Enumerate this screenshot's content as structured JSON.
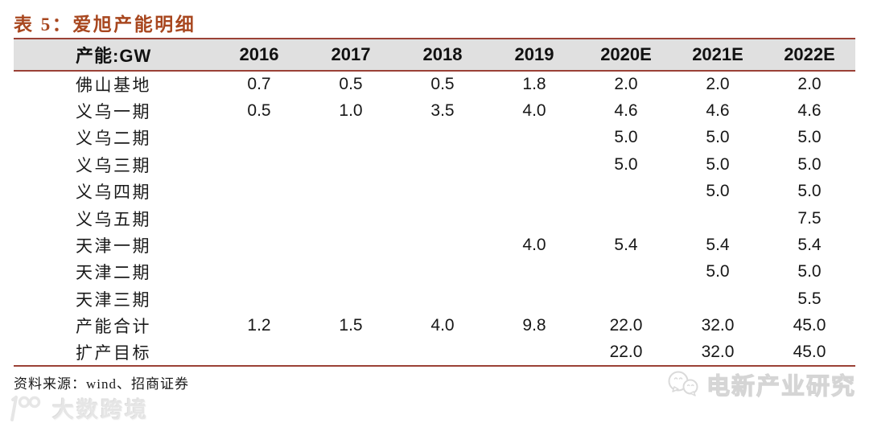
{
  "page": {
    "title": "表 5：爱旭产能明细"
  },
  "table": {
    "columns": [
      "产能:GW",
      "2016",
      "2017",
      "2018",
      "2019",
      "2020E",
      "2021E",
      "2022E"
    ],
    "rows": [
      {
        "label": "佛山基地",
        "values": [
          "0.7",
          "0.5",
          "0.5",
          "1.8",
          "2.0",
          "2.0",
          "2.0"
        ]
      },
      {
        "label": "义乌一期",
        "values": [
          "0.5",
          "1.0",
          "3.5",
          "4.0",
          "4.6",
          "4.6",
          "4.6"
        ]
      },
      {
        "label": "义乌二期",
        "values": [
          "",
          "",
          "",
          "",
          "5.0",
          "5.0",
          "5.0"
        ]
      },
      {
        "label": "义乌三期",
        "values": [
          "",
          "",
          "",
          "",
          "5.0",
          "5.0",
          "5.0"
        ]
      },
      {
        "label": "义乌四期",
        "values": [
          "",
          "",
          "",
          "",
          "",
          "5.0",
          "5.0"
        ]
      },
      {
        "label": "义乌五期",
        "values": [
          "",
          "",
          "",
          "",
          "",
          "",
          "7.5"
        ]
      },
      {
        "label": "天津一期",
        "values": [
          "",
          "",
          "",
          "4.0",
          "5.4",
          "5.4",
          "5.4"
        ]
      },
      {
        "label": "天津二期",
        "values": [
          "",
          "",
          "",
          "",
          "",
          "5.0",
          "5.0"
        ]
      },
      {
        "label": "天津三期",
        "values": [
          "",
          "",
          "",
          "",
          "",
          "",
          "5.5"
        ]
      },
      {
        "label": "产能合计",
        "values": [
          "1.2",
          "1.5",
          "4.0",
          "9.8",
          "22.0",
          "32.0",
          "45.0"
        ]
      },
      {
        "label": "扩产目标",
        "values": [
          "",
          "",
          "",
          "",
          "22.0",
          "32.0",
          "45.0"
        ]
      }
    ]
  },
  "footer": {
    "source": "资料来源：wind、招商证券"
  },
  "watermarks": {
    "left_text": "大数跨境",
    "right_text": "电新产业研究"
  },
  "colors": {
    "accent_title": "#A8471F",
    "rule_line": "#9B4136",
    "header_background": "#E0E0E0"
  }
}
